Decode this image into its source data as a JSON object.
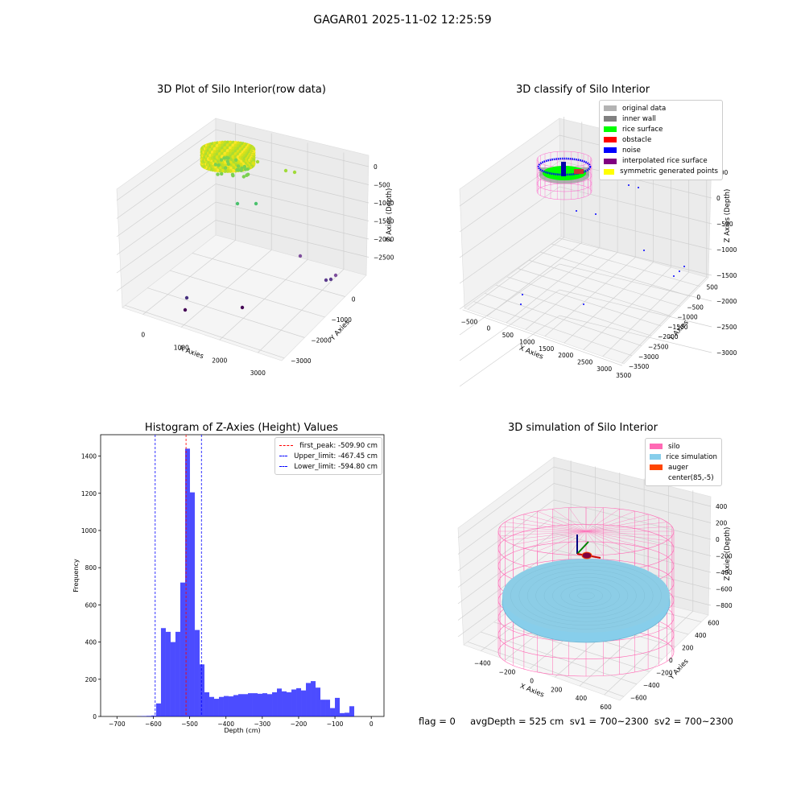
{
  "suptitle": "GAGAR01 2025-11-02 12:25:59",
  "footer": "flag = 0     avgDepth = 525 cm  sv1 = 700~2300  sv2 = 700~2300",
  "chart_data": [
    {
      "type": "scatter",
      "title": "3D Plot of Silo Interior(row data)",
      "xlabel": "X Axies",
      "ylabel": "Y Axies",
      "zlabel": "Z Axies (Depth)",
      "xticks": [
        "0",
        "1000",
        "2000",
        "3000"
      ],
      "yticks": [
        "0",
        "−1000",
        "−2000",
        "−3000"
      ],
      "zticks": [
        "0",
        "−500",
        "−1000",
        "−1500",
        "−2000",
        "−2500"
      ],
      "points": [
        {
          "x": 300,
          "y": 0,
          "z": -100
        },
        {
          "x": 800,
          "y": -100,
          "z": -90
        },
        {
          "x": 1100,
          "y": -150,
          "z": -150
        },
        {
          "x": 1500,
          "y": -50,
          "z": -200
        },
        {
          "x": 450,
          "y": -700,
          "z": -800
        },
        {
          "x": 950,
          "y": -900,
          "z": -850
        },
        {
          "x": 3100,
          "y": -2800,
          "z": -2500
        },
        {
          "x": 3200,
          "y": -3000,
          "z": -2600
        },
        {
          "x": 3350,
          "y": -2900,
          "z": -2650
        },
        {
          "x": 700,
          "y": -2200,
          "z": -2900
        },
        {
          "x": 1300,
          "y": -3100,
          "z": -3050
        },
        {
          "x": 800,
          "y": -2500,
          "z": -3000
        }
      ]
    },
    {
      "type": "scatter",
      "title": "3D classify of Silo Interior",
      "xlabel": "X Axies",
      "ylabel": "Y Axies",
      "zlabel": "Z Axies (Depth)",
      "xticks": [
        "−500",
        "0",
        "500",
        "1000",
        "1500",
        "2000",
        "2500",
        "3000",
        "3500"
      ],
      "yticks": [
        "500",
        "0",
        "−500",
        "−1000",
        "−1500",
        "−2000",
        "−2500",
        "−3000",
        "−3500"
      ],
      "zticks": [
        "500",
        "0",
        "−500",
        "−1000",
        "−1500",
        "−2000",
        "−2500",
        "−3000"
      ],
      "legend": [
        {
          "label": "original data",
          "color": "#b3b3b3"
        },
        {
          "label": "inner wall",
          "color": "#808080"
        },
        {
          "label": "rice surface",
          "color": "#00ff00"
        },
        {
          "label": "obstacle",
          "color": "#ff0000"
        },
        {
          "label": "noise",
          "color": "#0000ff"
        },
        {
          "label": "interpolated rice surface",
          "color": "#800080"
        },
        {
          "label": "symmetric generated points",
          "color": "#ffff00"
        }
      ]
    },
    {
      "type": "bar",
      "title": "Histogram of Z-Axies (Height) Values",
      "xlabel": "Depth (cm)",
      "ylabel": "Frequency",
      "xlim": [
        -745,
        35
      ],
      "ylim": [
        0,
        1515
      ],
      "xticks": [
        -700,
        -600,
        -500,
        -400,
        -300,
        -200,
        -100,
        0
      ],
      "yticks": [
        0,
        200,
        400,
        600,
        800,
        1000,
        1200,
        1400
      ],
      "bin_width": 13.3,
      "bins_start": [
        -645.4,
        -632.1,
        -618.8,
        -605.5,
        -592.2,
        -578.9,
        -565.6,
        -552.3,
        -539.0,
        -525.7,
        -512.4,
        -499.1,
        -485.8,
        -472.5,
        -459.2,
        -445.9,
        -432.6,
        -419.3,
        -406.0,
        -392.7,
        -379.4,
        -366.1,
        -352.8,
        -339.5,
        -326.2,
        -312.9,
        -299.6,
        -286.3,
        -273.0,
        -259.7,
        -246.4,
        -233.1,
        -219.8,
        -206.5,
        -193.2,
        -179.9,
        -166.6,
        -153.3,
        -140.0,
        -126.7,
        -113.4,
        -100.1,
        -86.8,
        -73.5,
        -60.2,
        -46.9,
        -33.6,
        -20.3,
        -7.0
      ],
      "values": [
        1,
        2,
        3,
        5,
        70,
        475,
        455,
        400,
        455,
        720,
        1440,
        1205,
        465,
        280,
        130,
        105,
        95,
        105,
        110,
        108,
        115,
        120,
        120,
        125,
        125,
        122,
        125,
        120,
        130,
        150,
        135,
        130,
        145,
        152,
        140,
        180,
        190,
        155,
        90,
        90,
        45,
        100,
        18,
        20,
        55,
        0,
        0,
        0,
        0
      ],
      "vlines": [
        {
          "label": "first_peak: -509.90 cm",
          "x": -509.9,
          "color": "#ff0000"
        },
        {
          "label": "Upper_limit: -467.45 cm",
          "x": -467.45,
          "color": "#0000ff"
        },
        {
          "label": "Lower_limit: -594.80 cm",
          "x": -594.8,
          "color": "#0000ff"
        }
      ]
    },
    {
      "type": "scatter",
      "title": "3D simulation of Silo Interior",
      "xlabel": "X Axies",
      "ylabel": "Y Axies",
      "zlabel": "Z Axies (Depth)",
      "xticks": [
        "−400",
        "−200",
        "0",
        "200",
        "400",
        "600"
      ],
      "yticks": [
        "600",
        "400",
        "200",
        "0",
        "−200",
        "−400",
        "−600"
      ],
      "zticks": [
        "400",
        "200",
        "0",
        "−200",
        "−400",
        "−600",
        "−800"
      ],
      "legend": [
        {
          "label": "silo",
          "color": "#ff69b4"
        },
        {
          "label": "rice simulation",
          "color": "#87ceeb"
        },
        {
          "label": "auger",
          "color": "#ff4500"
        },
        {
          "label": "center(85,-5)",
          "color": "#ffffff"
        }
      ]
    }
  ]
}
